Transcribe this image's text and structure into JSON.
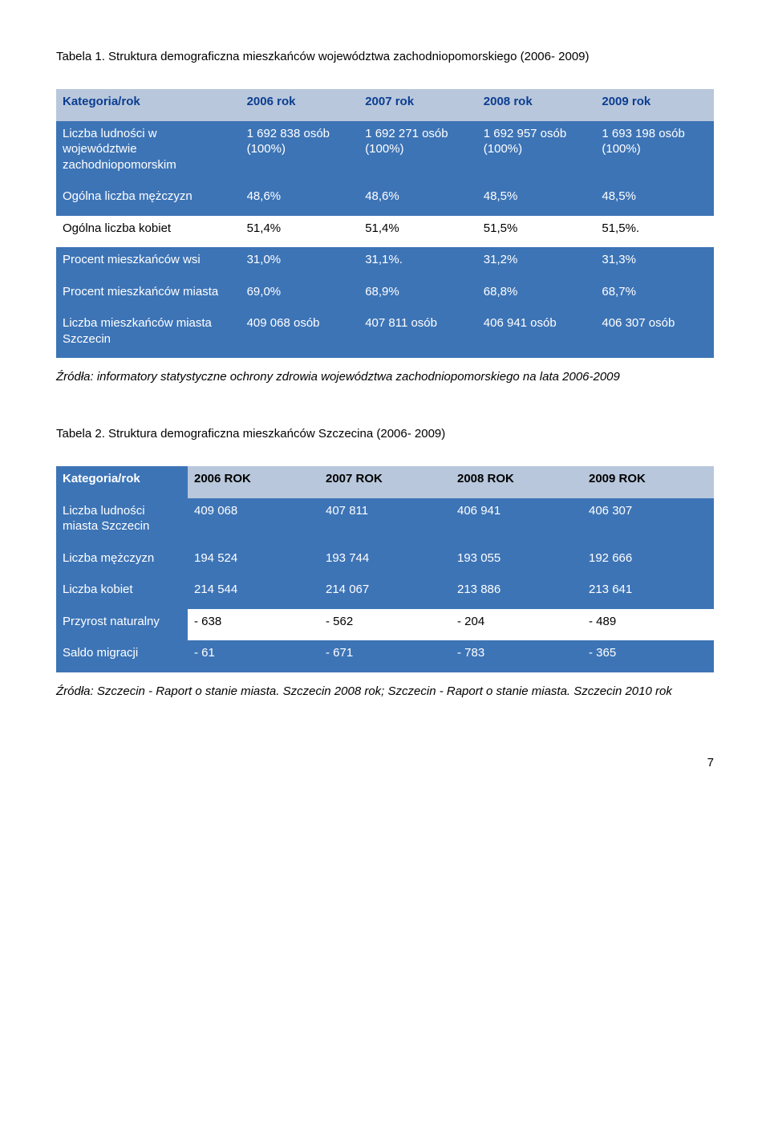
{
  "table1": {
    "title": "Tabela 1. Struktura demograficzna mieszkańców województwa zachodniopomorskiego (2006- 2009)",
    "header": [
      "Kategoria/rok",
      "2006 rok",
      "2007 rok",
      "2008 rok",
      "2009 rok"
    ],
    "col_widths": [
      "28%",
      "18%",
      "18%",
      "18%",
      "18%"
    ],
    "header_bg": "#b8c7dc",
    "header_color": "#0b3d91",
    "blue_bg": "#3d74b6",
    "rows": [
      {
        "type": "blue",
        "cells": [
          "Liczba ludności w województwie zachodniopomorskim",
          "1 692 838 osób (100%)",
          "1 692 271 osób (100%)",
          "1 692 957 osób (100%)",
          "1 693 198 osób (100%)"
        ]
      },
      {
        "type": "blue",
        "cells": [
          "Ogólna liczba mężczyzn",
          "48,6%",
          "48,6%",
          "48,5%",
          "48,5%"
        ]
      },
      {
        "type": "plain",
        "cells": [
          "Ogólna liczba kobiet",
          "51,4%",
          "51,4%",
          "51,5%",
          "51,5%."
        ]
      },
      {
        "type": "blue",
        "cells": [
          "Procent mieszkańców wsi",
          "31,0%",
          "31,1%.",
          "31,2%",
          "31,3%"
        ]
      },
      {
        "type": "blue",
        "cells": [
          "Procent mieszkańców miasta",
          "69,0%",
          "68,9%",
          "68,8%",
          "68,7%"
        ]
      },
      {
        "type": "blue",
        "cells": [
          "Liczba mieszkańców miasta Szczecin",
          "409 068 osób",
          "407 811 osób",
          "406 941 osób",
          "406 307 osób"
        ]
      }
    ],
    "source": "Źródła: informatory statystyczne ochrony zdrowia województwa zachodniopomorskiego na lata 2006-2009"
  },
  "table2": {
    "title": "Tabela 2. Struktura demograficzna mieszkańców Szczecina (2006- 2009)",
    "header": [
      "Kategoria/rok",
      "2006 ROK",
      "2007 ROK",
      "2008 ROK",
      "2009 ROK"
    ],
    "col_widths": [
      "20%",
      "20%",
      "20%",
      "20%",
      "20%"
    ],
    "header_label_bg": "#3d74b6",
    "header_label_color": "#ffffff",
    "header_years_bg": "#b8c7dc",
    "header_years_color": "#000000",
    "blue_bg": "#3d74b6",
    "rows": [
      {
        "type": "blue",
        "cells": [
          "Liczba ludności miasta Szczecin",
          "409 068",
          "407 811",
          "406 941",
          "406 307"
        ]
      },
      {
        "type": "blue",
        "cells": [
          "Liczba mężczyzn",
          "194 524",
          "193 744",
          "193 055",
          "192 666"
        ]
      },
      {
        "type": "blue",
        "cells": [
          "Liczba kobiet",
          "214 544",
          "214 067",
          "213 886",
          "213 641"
        ]
      },
      {
        "type": "mixed",
        "cells": [
          "Przyrost naturalny",
          "- 638",
          "- 562",
          "- 204",
          "- 489"
        ]
      },
      {
        "type": "blue",
        "cells": [
          "Saldo migracji",
          "- 61",
          "- 671",
          "- 783",
          "- 365"
        ]
      }
    ],
    "source": "Źródła: Szczecin - Raport o stanie miasta. Szczecin  2008 rok; Szczecin - Raport o stanie miasta. Szczecin 2010 rok"
  },
  "page_number": "7"
}
